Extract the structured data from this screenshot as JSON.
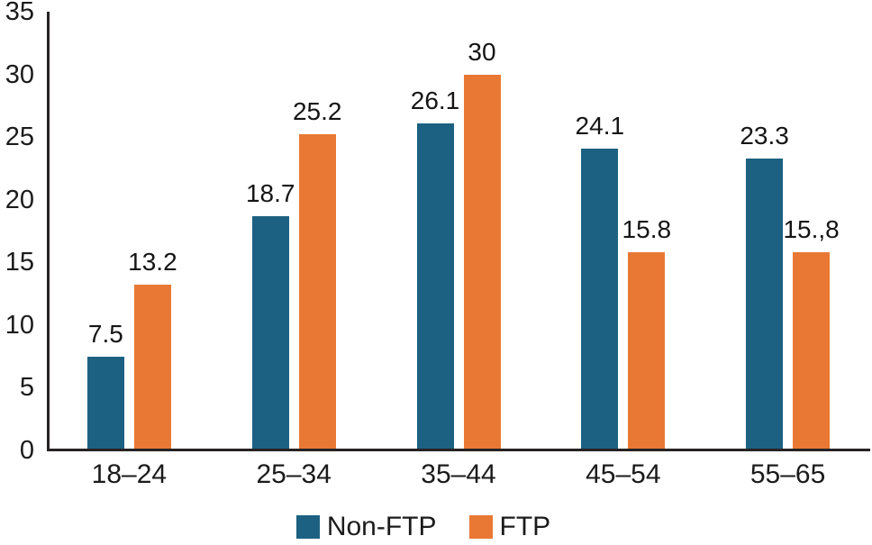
{
  "chart_data": {
    "type": "bar",
    "title": "",
    "xlabel": "",
    "ylabel": "",
    "categories": [
      "18–24",
      "25–34",
      "35–44",
      "45–54",
      "55–65"
    ],
    "series": [
      {
        "name": "Non-FTP",
        "color": "#1C6182",
        "values": [
          7.5,
          18.7,
          26.1,
          24.1,
          23.3
        ],
        "labels": [
          "7.5",
          "18.7",
          "26.1",
          "24.1",
          "23.3"
        ]
      },
      {
        "name": "FTP",
        "color": "#E97834",
        "values": [
          13.2,
          25.2,
          30,
          15.8,
          15.8
        ],
        "labels": [
          "13.2",
          "25.2",
          "30",
          "15.8",
          "15.,8"
        ]
      }
    ],
    "ylim": [
      0,
      35
    ],
    "yticks": [
      0,
      5,
      10,
      15,
      20,
      25,
      30,
      35
    ],
    "grid": false,
    "legend_position": "bottom",
    "axis_color": "#272324",
    "text_color": "#1b1b1b",
    "background": "#ffffff"
  }
}
